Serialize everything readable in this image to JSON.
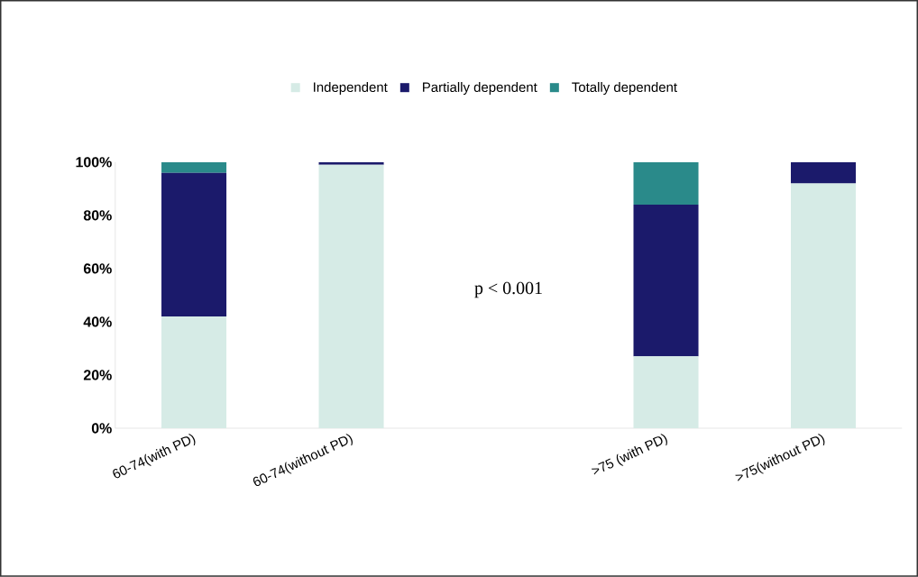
{
  "chart_data": {
    "type": "bar",
    "stacked": true,
    "categories": [
      "60-74(with PD)",
      "60-74(without PD)",
      null,
      ">75 (with PD)",
      ">75(without PD)"
    ],
    "series": [
      {
        "name": "Independent",
        "color": "#d6ebe6",
        "values": [
          42,
          99,
          null,
          27,
          92
        ]
      },
      {
        "name": "Partially dependent",
        "color": "#1b1a6b",
        "values": [
          54,
          1,
          null,
          57,
          8
        ]
      },
      {
        "name": "Totally dependent",
        "color": "#2a8a8a",
        "values": [
          4,
          0,
          null,
          16,
          0
        ]
      }
    ],
    "ylim": [
      0,
      100
    ],
    "yticks": [
      {
        "value": 0,
        "label": "0%"
      },
      {
        "value": 20,
        "label": "20%"
      },
      {
        "value": 40,
        "label": "40%"
      },
      {
        "value": 60,
        "label": "60%"
      },
      {
        "value": 80,
        "label": "80%"
      },
      {
        "value": 100,
        "label": "100%"
      }
    ],
    "legend": "top",
    "annotations": [
      "p < 0.001"
    ]
  }
}
